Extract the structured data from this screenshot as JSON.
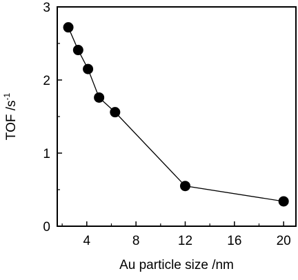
{
  "chart_data": {
    "type": "scatter",
    "title": "",
    "xlabel": "Au particle size /nm",
    "ylabel_main": "TOF /s",
    "ylabel_sup": "-1",
    "xlim": [
      1.6,
      21.0
    ],
    "ylim": [
      0,
      3
    ],
    "xticks": [
      4,
      8,
      12,
      16,
      20
    ],
    "yticks": [
      0,
      1,
      2,
      3
    ],
    "grid": false,
    "series": [
      {
        "x": [
          2.5,
          3.3,
          4.1,
          5.0,
          6.3,
          12.0,
          20.0
        ],
        "y": [
          2.72,
          2.41,
          2.15,
          1.76,
          1.56,
          0.55,
          0.34
        ],
        "line": true,
        "marker": "filled-circle",
        "color": "#000000"
      }
    ]
  }
}
